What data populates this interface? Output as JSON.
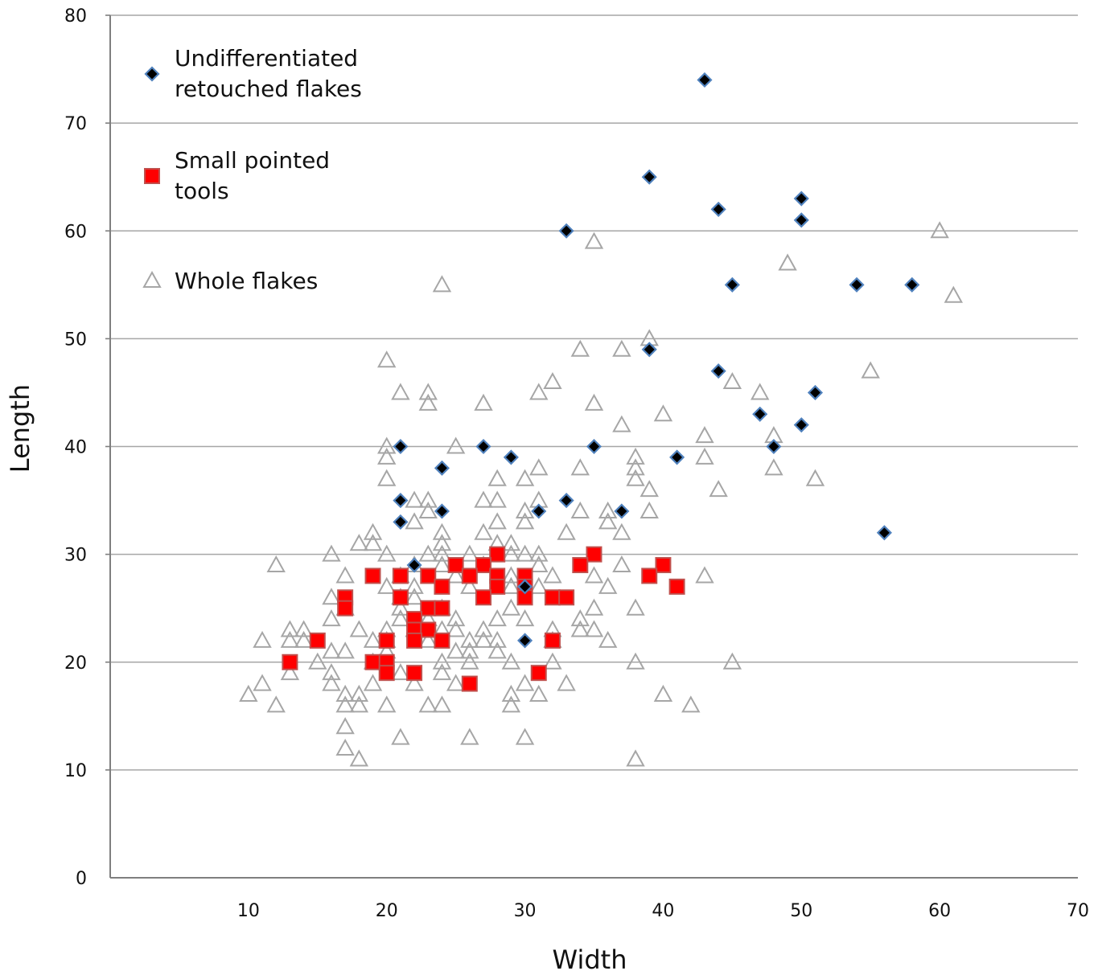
{
  "chart_data": {
    "type": "scatter",
    "xlabel": "Width",
    "ylabel": "Length",
    "xlim": [
      0,
      70
    ],
    "ylim": [
      0,
      80
    ],
    "x_ticks": [
      10,
      20,
      30,
      40,
      50,
      60,
      70
    ],
    "y_ticks": [
      0,
      10,
      20,
      30,
      40,
      50,
      60,
      70,
      80
    ],
    "grid": "horizontal",
    "legend_placement": "top-left",
    "series": [
      {
        "name": "Undifferentiated retouched flakes",
        "name_lines": [
          "Undifferentiated",
          "retouched flakes"
        ],
        "marker": "diamond",
        "color": "#000000",
        "edge_color": "#4f81bd",
        "points": [
          [
            43,
            74
          ],
          [
            39,
            65
          ],
          [
            44,
            62
          ],
          [
            50,
            63
          ],
          [
            50,
            61
          ],
          [
            33,
            60
          ],
          [
            45,
            55
          ],
          [
            54,
            55
          ],
          [
            58,
            55
          ],
          [
            39,
            49
          ],
          [
            44,
            47
          ],
          [
            51,
            45
          ],
          [
            47,
            43
          ],
          [
            50,
            42
          ],
          [
            21,
            40
          ],
          [
            27,
            40
          ],
          [
            35,
            40
          ],
          [
            48,
            40
          ],
          [
            29,
            39
          ],
          [
            41,
            39
          ],
          [
            24,
            38
          ],
          [
            21,
            35
          ],
          [
            33,
            35
          ],
          [
            24,
            34
          ],
          [
            31,
            34
          ],
          [
            37,
            34
          ],
          [
            21,
            33
          ],
          [
            56,
            32
          ],
          [
            22,
            29
          ],
          [
            30,
            27
          ],
          [
            30,
            22
          ]
        ]
      },
      {
        "name": "Small pointed tools",
        "name_lines": [
          "Small pointed",
          "tools"
        ],
        "marker": "square",
        "color": "#ff0000",
        "edge_color": "#c0504d",
        "points": [
          [
            35,
            30
          ],
          [
            28,
            30
          ],
          [
            40,
            29
          ],
          [
            34,
            29
          ],
          [
            25,
            29
          ],
          [
            27,
            29
          ],
          [
            19,
            28
          ],
          [
            21,
            28
          ],
          [
            23,
            28
          ],
          [
            28,
            28
          ],
          [
            30,
            28
          ],
          [
            39,
            28
          ],
          [
            24,
            27
          ],
          [
            26,
            28
          ],
          [
            28,
            27
          ],
          [
            30,
            27
          ],
          [
            41,
            27
          ],
          [
            17,
            26
          ],
          [
            21,
            26
          ],
          [
            27,
            26
          ],
          [
            30,
            26
          ],
          [
            32,
            26
          ],
          [
            33,
            26
          ],
          [
            17,
            25
          ],
          [
            23,
            25
          ],
          [
            24,
            25
          ],
          [
            22,
            24
          ],
          [
            22,
            23
          ],
          [
            23,
            23
          ],
          [
            15,
            22
          ],
          [
            20,
            22
          ],
          [
            22,
            22
          ],
          [
            24,
            22
          ],
          [
            32,
            22
          ],
          [
            13,
            20
          ],
          [
            19,
            20
          ],
          [
            20,
            20
          ],
          [
            20,
            19
          ],
          [
            22,
            19
          ],
          [
            31,
            19
          ],
          [
            26,
            18
          ]
        ]
      },
      {
        "name": "Whole flakes",
        "name_lines": [
          "Whole flakes"
        ],
        "marker": "triangle-open",
        "color": "#a6a6a6",
        "edge_color": "#a6a6a6",
        "points": [
          [
            60,
            60
          ],
          [
            35,
            59
          ],
          [
            61,
            54
          ],
          [
            49,
            57
          ],
          [
            24,
            55
          ],
          [
            39,
            50
          ],
          [
            34,
            49
          ],
          [
            37,
            49
          ],
          [
            20,
            48
          ],
          [
            55,
            47
          ],
          [
            32,
            46
          ],
          [
            45,
            46
          ],
          [
            21,
            45
          ],
          [
            23,
            45
          ],
          [
            31,
            45
          ],
          [
            47,
            45
          ],
          [
            23,
            44
          ],
          [
            27,
            44
          ],
          [
            35,
            44
          ],
          [
            40,
            43
          ],
          [
            37,
            42
          ],
          [
            43,
            41
          ],
          [
            48,
            41
          ],
          [
            20,
            40
          ],
          [
            25,
            40
          ],
          [
            20,
            39
          ],
          [
            38,
            39
          ],
          [
            43,
            39
          ],
          [
            31,
            38
          ],
          [
            34,
            38
          ],
          [
            38,
            38
          ],
          [
            48,
            38
          ],
          [
            20,
            37
          ],
          [
            28,
            37
          ],
          [
            30,
            37
          ],
          [
            38,
            37
          ],
          [
            51,
            37
          ],
          [
            39,
            36
          ],
          [
            44,
            36
          ],
          [
            22,
            35
          ],
          [
            23,
            35
          ],
          [
            27,
            35
          ],
          [
            28,
            35
          ],
          [
            31,
            35
          ],
          [
            23,
            34
          ],
          [
            30,
            34
          ],
          [
            34,
            34
          ],
          [
            36,
            34
          ],
          [
            39,
            34
          ],
          [
            22,
            33
          ],
          [
            28,
            33
          ],
          [
            30,
            33
          ],
          [
            36,
            33
          ],
          [
            19,
            32
          ],
          [
            24,
            32
          ],
          [
            27,
            32
          ],
          [
            33,
            32
          ],
          [
            37,
            32
          ],
          [
            19,
            31
          ],
          [
            18,
            31
          ],
          [
            24,
            31
          ],
          [
            28,
            31
          ],
          [
            29,
            31
          ],
          [
            16,
            30
          ],
          [
            20,
            30
          ],
          [
            23,
            30
          ],
          [
            24,
            30
          ],
          [
            26,
            30
          ],
          [
            29,
            30
          ],
          [
            30,
            30
          ],
          [
            31,
            30
          ],
          [
            12,
            29
          ],
          [
            22,
            29
          ],
          [
            24,
            29
          ],
          [
            27,
            29
          ],
          [
            31,
            29
          ],
          [
            37,
            29
          ],
          [
            17,
            28
          ],
          [
            21,
            28
          ],
          [
            25,
            28
          ],
          [
            29,
            28
          ],
          [
            32,
            28
          ],
          [
            35,
            28
          ],
          [
            43,
            28
          ],
          [
            20,
            27
          ],
          [
            22,
            27
          ],
          [
            26,
            27
          ],
          [
            29,
            27
          ],
          [
            31,
            27
          ],
          [
            36,
            27
          ],
          [
            16,
            26
          ],
          [
            21,
            26
          ],
          [
            22,
            26
          ],
          [
            17,
            25
          ],
          [
            21,
            25
          ],
          [
            24,
            25
          ],
          [
            29,
            25
          ],
          [
            35,
            25
          ],
          [
            38,
            25
          ],
          [
            16,
            24
          ],
          [
            21,
            24
          ],
          [
            23,
            24
          ],
          [
            25,
            24
          ],
          [
            28,
            24
          ],
          [
            30,
            24
          ],
          [
            34,
            24
          ],
          [
            13,
            23
          ],
          [
            14,
            23
          ],
          [
            18,
            23
          ],
          [
            20,
            23
          ],
          [
            22,
            23
          ],
          [
            24,
            23
          ],
          [
            25,
            23
          ],
          [
            27,
            23
          ],
          [
            32,
            23
          ],
          [
            34,
            23
          ],
          [
            35,
            23
          ],
          [
            11,
            22
          ],
          [
            13,
            22
          ],
          [
            14,
            22
          ],
          [
            19,
            22
          ],
          [
            20,
            22
          ],
          [
            23,
            22
          ],
          [
            26,
            22
          ],
          [
            28,
            22
          ],
          [
            27,
            22
          ],
          [
            32,
            22
          ],
          [
            36,
            22
          ],
          [
            16,
            21
          ],
          [
            17,
            21
          ],
          [
            20,
            21
          ],
          [
            25,
            21
          ],
          [
            26,
            21
          ],
          [
            28,
            21
          ],
          [
            15,
            20
          ],
          [
            19,
            20
          ],
          [
            24,
            20
          ],
          [
            26,
            20
          ],
          [
            29,
            20
          ],
          [
            32,
            20
          ],
          [
            38,
            20
          ],
          [
            45,
            20
          ],
          [
            13,
            19
          ],
          [
            16,
            19
          ],
          [
            21,
            19
          ],
          [
            24,
            19
          ],
          [
            11,
            18
          ],
          [
            16,
            18
          ],
          [
            19,
            18
          ],
          [
            22,
            18
          ],
          [
            25,
            18
          ],
          [
            30,
            18
          ],
          [
            33,
            18
          ],
          [
            10,
            17
          ],
          [
            17,
            17
          ],
          [
            18,
            17
          ],
          [
            29,
            17
          ],
          [
            31,
            17
          ],
          [
            40,
            17
          ],
          [
            12,
            16
          ],
          [
            17,
            16
          ],
          [
            18,
            16
          ],
          [
            20,
            16
          ],
          [
            23,
            16
          ],
          [
            24,
            16
          ],
          [
            29,
            16
          ],
          [
            42,
            16
          ],
          [
            17,
            14
          ],
          [
            21,
            13
          ],
          [
            26,
            13
          ],
          [
            30,
            13
          ],
          [
            17,
            12
          ],
          [
            18,
            11
          ],
          [
            38,
            11
          ]
        ]
      }
    ]
  }
}
